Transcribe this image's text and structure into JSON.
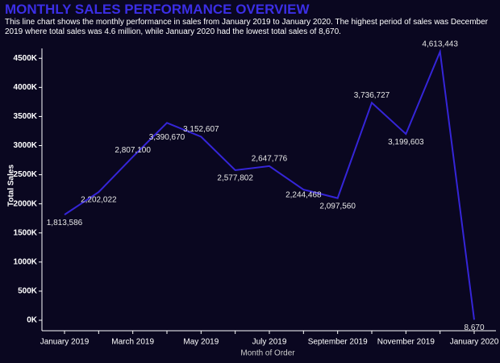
{
  "chart_data": {
    "type": "line",
    "title": "MONTHLY SALES PERFORMANCE OVERVIEW",
    "subtitle": "This line chart shows the monthly performance in sales from January 2019 to January 2020. The highest period of sales was December 2019 where total sales was 4.6 million, while January 2020 had the lowest total sales of 8,670.",
    "x_label": "Month of Order",
    "y_label": "Total Sales",
    "categories": [
      "January 2019",
      null,
      "March 2019",
      null,
      "May 2019",
      null,
      "July 2019",
      null,
      "September 2019",
      null,
      "November 2019",
      null,
      "January 2020"
    ],
    "series": [
      {
        "name": "Total Sales",
        "color": "#3525d8",
        "values": [
          1813586,
          2202022,
          2807100,
          3390670,
          3152607,
          2577802,
          2647776,
          2244468,
          2097560,
          3736727,
          3199603,
          4613443,
          8670
        ],
        "value_labels": [
          "1,813,586",
          "2,202,022",
          "2,807,100",
          "3,390,670",
          "3,152,607",
          "2,577,802",
          "2,647,776",
          "2,244,468",
          "2,097,560",
          "3,736,727",
          "3,199,603",
          "4,613,443",
          "8,670"
        ]
      }
    ],
    "ylim": [
      -180000,
      4670000
    ],
    "yticks": [
      {
        "value": 0,
        "label": "0K"
      },
      {
        "value": 500000,
        "label": "500K"
      },
      {
        "value": 1000000,
        "label": "1000K"
      },
      {
        "value": 1500000,
        "label": "1500K"
      },
      {
        "value": 2000000,
        "label": "2000K"
      },
      {
        "value": 2500000,
        "label": "2500K"
      },
      {
        "value": 3000000,
        "label": "3000K"
      },
      {
        "value": 3500000,
        "label": "3500K"
      },
      {
        "value": 4000000,
        "label": "4000K"
      },
      {
        "value": 4500000,
        "label": "4500K"
      }
    ],
    "grid": false
  }
}
